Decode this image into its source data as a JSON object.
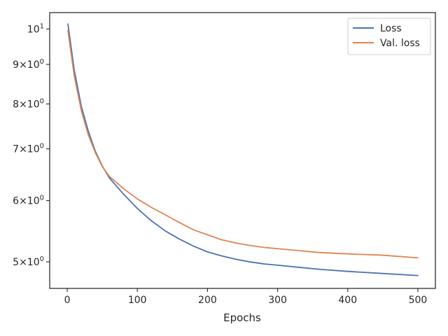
{
  "chart_data": {
    "type": "line",
    "title": "",
    "xlabel": "Epochs",
    "ylabel": "",
    "yscale": "log",
    "xlim": [
      -25,
      525
    ],
    "ylim": [
      4.62,
      10.5
    ],
    "grid": false,
    "legend_position": "top-right",
    "x_ticks": [
      {
        "value": 0,
        "label": "0"
      },
      {
        "value": 100,
        "label": "100"
      },
      {
        "value": 200,
        "label": "200"
      },
      {
        "value": 300,
        "label": "300"
      },
      {
        "value": 400,
        "label": "400"
      },
      {
        "value": 500,
        "label": "500"
      }
    ],
    "y_ticks": [
      {
        "value": 5,
        "mantissa": "5",
        "base": "10",
        "exp": "0"
      },
      {
        "value": 6,
        "mantissa": "6",
        "base": "10",
        "exp": "0"
      },
      {
        "value": 7,
        "mantissa": "7",
        "base": "10",
        "exp": "0"
      },
      {
        "value": 8,
        "mantissa": "8",
        "base": "10",
        "exp": "0"
      },
      {
        "value": 9,
        "mantissa": "9",
        "base": "10",
        "exp": "0"
      },
      {
        "value": 10,
        "mantissa": "",
        "base": "10",
        "exp": "1"
      }
    ],
    "x": [
      1,
      10,
      20,
      30,
      40,
      50,
      60,
      80,
      100,
      120,
      140,
      160,
      180,
      200,
      220,
      240,
      260,
      280,
      300,
      330,
      360,
      400,
      450,
      500
    ],
    "series": [
      {
        "name": "Loss",
        "color": "#4c72b0",
        "values": [
          10.15,
          8.85,
          7.95,
          7.38,
          6.95,
          6.65,
          6.42,
          6.12,
          5.86,
          5.65,
          5.48,
          5.35,
          5.24,
          5.15,
          5.09,
          5.04,
          5.0,
          4.97,
          4.95,
          4.92,
          4.89,
          4.86,
          4.83,
          4.8
        ]
      },
      {
        "name": "Val. loss",
        "color": "#dd8452",
        "values": [
          9.95,
          8.7,
          7.85,
          7.3,
          6.92,
          6.64,
          6.45,
          6.22,
          6.03,
          5.88,
          5.75,
          5.62,
          5.5,
          5.42,
          5.34,
          5.29,
          5.25,
          5.22,
          5.2,
          5.17,
          5.14,
          5.12,
          5.1,
          5.06
        ]
      }
    ]
  }
}
